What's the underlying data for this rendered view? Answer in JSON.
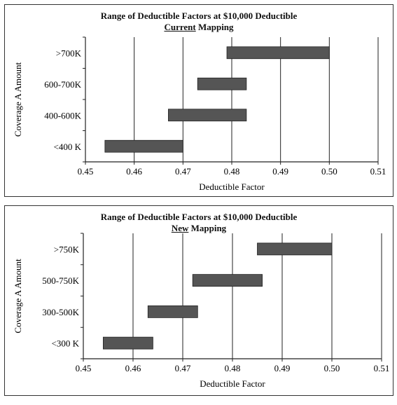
{
  "chart_data": [
    {
      "type": "bar",
      "orientation": "horizontal",
      "title": "Range of Deductible Factors at $10,000 Deductible",
      "subtitle_underlined": "Current",
      "subtitle_rest": " Mapping",
      "xlabel": "Deductible Factor",
      "ylabel": "Coverage A Amount",
      "xlim": [
        0.45,
        0.51
      ],
      "xticks": [
        "0.45",
        "0.46",
        "0.47",
        "0.48",
        "0.49",
        "0.50",
        "0.51"
      ],
      "grid": "vertical",
      "bar_color": "#555555",
      "categories": [
        ">700K",
        "600-700K",
        "400-600K",
        "<400 K"
      ],
      "ranges": [
        [
          0.479,
          0.5
        ],
        [
          0.473,
          0.483
        ],
        [
          0.467,
          0.483
        ],
        [
          0.454,
          0.47
        ]
      ]
    },
    {
      "type": "bar",
      "orientation": "horizontal",
      "title": "Range of Deductible Factors at $10,000 Deductible",
      "subtitle_underlined": "New",
      "subtitle_rest": " Mapping",
      "xlabel": "Deductible Factor",
      "ylabel": "Coverage A Amount",
      "xlim": [
        0.45,
        0.51
      ],
      "xticks": [
        "0.45",
        "0.46",
        "0.47",
        "0.48",
        "0.49",
        "0.50",
        "0.51"
      ],
      "grid": "vertical",
      "bar_color": "#555555",
      "categories": [
        ">750K",
        "500-750K",
        "300-500K",
        "<300 K"
      ],
      "ranges": [
        [
          0.485,
          0.5
        ],
        [
          0.472,
          0.486
        ],
        [
          0.463,
          0.473
        ],
        [
          0.454,
          0.464
        ]
      ]
    }
  ]
}
